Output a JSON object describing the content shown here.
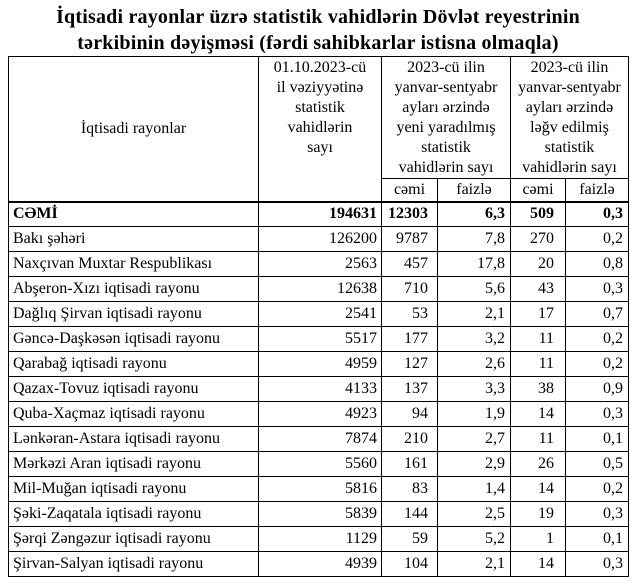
{
  "title_line1": "İqtisadi rayonlar üzrə statistik vahidlərin Dövlət reyestrinin",
  "title_line2": "tərkibinin dəyişməsi (fərdi sahibkarlar istisna olmaqla)",
  "table": {
    "headers": {
      "regions": "İqtisadi rayonlar",
      "stock": "01.10.2023-cü\nil vəziyyətinə\nstatistik\nvahidlərin\nsayı",
      "created_group": "2023-cü ilin\nyanvar-sentyabr\nayları ərzində\nyeni yaradılmış\nstatistik\nvahidlərin sayı",
      "liquidated_group": "2023-cü ilin\nyanvar-sentyabr\nayları ərzində\nləğv edilmiş\nstatistik\nvahidlərin sayı",
      "sub_total": "cəmi",
      "sub_percent": "faizlə"
    },
    "total_row": {
      "label": "CƏMİ",
      "values": [
        "194631",
        "12303",
        "6,3",
        "509",
        "0,3"
      ]
    },
    "rows": [
      {
        "label": "Bakı şəhəri",
        "values": [
          "126200",
          "9787",
          "7,8",
          "270",
          "0,2"
        ]
      },
      {
        "label": "Naxçıvan Muxtar Respublikası",
        "values": [
          "2563",
          "457",
          "17,8",
          "20",
          "0,8"
        ]
      },
      {
        "label": "Abşeron-Xızı iqtisadi rayonu",
        "values": [
          "12638",
          "710",
          "5,6",
          "43",
          "0,3"
        ]
      },
      {
        "label": "Dağlıq Şirvan iqtisadi rayonu",
        "values": [
          "2541",
          "53",
          "2,1",
          "17",
          "0,7"
        ]
      },
      {
        "label": "Gəncə-Daşkəsən iqtisadi rayonu",
        "values": [
          "5517",
          "177",
          "3,2",
          "11",
          "0,2"
        ]
      },
      {
        "label": "Qarabağ iqtisadi rayonu",
        "values": [
          "4959",
          "127",
          "2,6",
          "11",
          "0,2"
        ]
      },
      {
        "label": "Qazax-Tovuz iqtisadi rayonu",
        "values": [
          "4133",
          "137",
          "3,3",
          "38",
          "0,9"
        ]
      },
      {
        "label": "Quba-Xaçmaz iqtisadi rayonu",
        "values": [
          "4923",
          "94",
          "1,9",
          "14",
          "0,3"
        ]
      },
      {
        "label": "Lənkəran-Astara iqtisadi rayonu",
        "values": [
          "7874",
          "210",
          "2,7",
          "11",
          "0,1"
        ]
      },
      {
        "label": "Mərkəzi Aran iqtisadi rayonu",
        "values": [
          "5560",
          "161",
          "2,9",
          "26",
          "0,5"
        ]
      },
      {
        "label": "Mil-Muğan iqtisadi rayonu",
        "values": [
          "5816",
          "83",
          "1,4",
          "14",
          "0,2"
        ]
      },
      {
        "label": "Şəki-Zaqatala iqtisadi rayonu",
        "values": [
          "5839",
          "144",
          "2,5",
          "19",
          "0,3"
        ]
      },
      {
        "label": "Şərqi Zəngəzur iqtisadi rayonu",
        "values": [
          "1129",
          "59",
          "5,2",
          "1",
          "0,1"
        ]
      },
      {
        "label": "Şirvan-Salyan iqtisadi rayonu",
        "values": [
          "4939",
          "104",
          "2,1",
          "14",
          "0,3"
        ]
      }
    ]
  }
}
